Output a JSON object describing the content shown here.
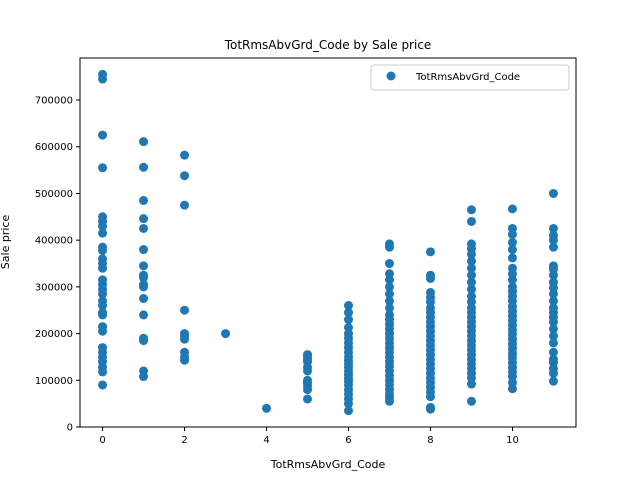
{
  "chart_data": {
    "type": "scatter",
    "title": "TotRmsAbvGrd_Code by Sale price",
    "xlabel": "TotRmsAbvGrd_Code",
    "ylabel": "Sale price",
    "xlim": [
      -0.55,
      11.55
    ],
    "ylim": [
      0,
      790000
    ],
    "xticks": [
      0,
      2,
      4,
      6,
      8,
      10
    ],
    "yticks": [
      0,
      100000,
      200000,
      300000,
      400000,
      500000,
      600000,
      700000
    ],
    "grid": false,
    "legend_position": "top-right",
    "series": [
      {
        "name": "TotRmsAbvGrd_Code",
        "color": "#1f77b4",
        "marker": "circle",
        "points": [
          [
            0,
            755000
          ],
          [
            0,
            745000
          ],
          [
            0,
            625000
          ],
          [
            0,
            555000
          ],
          [
            0,
            450000
          ],
          [
            0,
            440000
          ],
          [
            0,
            430000
          ],
          [
            0,
            415000
          ],
          [
            0,
            385000
          ],
          [
            0,
            378000
          ],
          [
            0,
            360000
          ],
          [
            0,
            350000
          ],
          [
            0,
            340000
          ],
          [
            0,
            315000
          ],
          [
            0,
            305000
          ],
          [
            0,
            295000
          ],
          [
            0,
            285000
          ],
          [
            0,
            270000
          ],
          [
            0,
            260000
          ],
          [
            0,
            245000
          ],
          [
            0,
            240000
          ],
          [
            0,
            215000
          ],
          [
            0,
            205000
          ],
          [
            0,
            170000
          ],
          [
            0,
            160000
          ],
          [
            0,
            150000
          ],
          [
            0,
            140000
          ],
          [
            0,
            128000
          ],
          [
            0,
            118000
          ],
          [
            0,
            90000
          ],
          [
            1,
            611000
          ],
          [
            1,
            556000
          ],
          [
            1,
            485000
          ],
          [
            1,
            446000
          ],
          [
            1,
            425000
          ],
          [
            1,
            380000
          ],
          [
            1,
            345000
          ],
          [
            1,
            325000
          ],
          [
            1,
            320000
          ],
          [
            1,
            305000
          ],
          [
            1,
            300000
          ],
          [
            1,
            275000
          ],
          [
            1,
            240000
          ],
          [
            1,
            190000
          ],
          [
            1,
            185000
          ],
          [
            1,
            120000
          ],
          [
            1,
            108000
          ],
          [
            2,
            582000
          ],
          [
            2,
            538000
          ],
          [
            2,
            475000
          ],
          [
            2,
            250000
          ],
          [
            2,
            200000
          ],
          [
            2,
            195000
          ],
          [
            2,
            188000
          ],
          [
            2,
            160000
          ],
          [
            2,
            150000
          ],
          [
            2,
            143000
          ],
          [
            3,
            200000
          ],
          [
            4,
            40000
          ],
          [
            5,
            155000
          ],
          [
            5,
            150000
          ],
          [
            5,
            145000
          ],
          [
            5,
            140000
          ],
          [
            5,
            128000
          ],
          [
            5,
            120000
          ],
          [
            5,
            100000
          ],
          [
            5,
            95000
          ],
          [
            5,
            88000
          ],
          [
            5,
            80000
          ],
          [
            5,
            60000
          ],
          [
            6,
            260000
          ],
          [
            6,
            245000
          ],
          [
            6,
            230000
          ],
          [
            6,
            213000
          ],
          [
            6,
            200000
          ],
          [
            6,
            190000
          ],
          [
            6,
            180000
          ],
          [
            6,
            170000
          ],
          [
            6,
            160000
          ],
          [
            6,
            150000
          ],
          [
            6,
            142000
          ],
          [
            6,
            135000
          ],
          [
            6,
            128000
          ],
          [
            6,
            120000
          ],
          [
            6,
            112000
          ],
          [
            6,
            105000
          ],
          [
            6,
            98000
          ],
          [
            6,
            90000
          ],
          [
            6,
            80000
          ],
          [
            6,
            70000
          ],
          [
            6,
            60000
          ],
          [
            6,
            50000
          ],
          [
            6,
            35000
          ],
          [
            7,
            392000
          ],
          [
            7,
            385000
          ],
          [
            7,
            350000
          ],
          [
            7,
            328000
          ],
          [
            7,
            315000
          ],
          [
            7,
            300000
          ],
          [
            7,
            285000
          ],
          [
            7,
            270000
          ],
          [
            7,
            255000
          ],
          [
            7,
            240000
          ],
          [
            7,
            230000
          ],
          [
            7,
            220000
          ],
          [
            7,
            210000
          ],
          [
            7,
            200000
          ],
          [
            7,
            190000
          ],
          [
            7,
            180000
          ],
          [
            7,
            170000
          ],
          [
            7,
            160000
          ],
          [
            7,
            150000
          ],
          [
            7,
            140000
          ],
          [
            7,
            130000
          ],
          [
            7,
            120000
          ],
          [
            7,
            110000
          ],
          [
            7,
            100000
          ],
          [
            7,
            90000
          ],
          [
            7,
            80000
          ],
          [
            7,
            70000
          ],
          [
            7,
            62000
          ],
          [
            7,
            55000
          ],
          [
            8,
            375000
          ],
          [
            8,
            325000
          ],
          [
            8,
            318000
          ],
          [
            8,
            288000
          ],
          [
            8,
            278000
          ],
          [
            8,
            268000
          ],
          [
            8,
            255000
          ],
          [
            8,
            245000
          ],
          [
            8,
            235000
          ],
          [
            8,
            225000
          ],
          [
            8,
            215000
          ],
          [
            8,
            205000
          ],
          [
            8,
            195000
          ],
          [
            8,
            185000
          ],
          [
            8,
            175000
          ],
          [
            8,
            165000
          ],
          [
            8,
            155000
          ],
          [
            8,
            145000
          ],
          [
            8,
            135000
          ],
          [
            8,
            125000
          ],
          [
            8,
            115000
          ],
          [
            8,
            105000
          ],
          [
            8,
            95000
          ],
          [
            8,
            85000
          ],
          [
            8,
            75000
          ],
          [
            8,
            65000
          ],
          [
            8,
            42000
          ],
          [
            8,
            38000
          ],
          [
            9,
            465000
          ],
          [
            9,
            440000
          ],
          [
            9,
            392000
          ],
          [
            9,
            382000
          ],
          [
            9,
            370000
          ],
          [
            9,
            355000
          ],
          [
            9,
            340000
          ],
          [
            9,
            325000
          ],
          [
            9,
            310000
          ],
          [
            9,
            295000
          ],
          [
            9,
            280000
          ],
          [
            9,
            268000
          ],
          [
            9,
            255000
          ],
          [
            9,
            245000
          ],
          [
            9,
            235000
          ],
          [
            9,
            225000
          ],
          [
            9,
            215000
          ],
          [
            9,
            205000
          ],
          [
            9,
            195000
          ],
          [
            9,
            185000
          ],
          [
            9,
            175000
          ],
          [
            9,
            165000
          ],
          [
            9,
            155000
          ],
          [
            9,
            145000
          ],
          [
            9,
            135000
          ],
          [
            9,
            125000
          ],
          [
            9,
            115000
          ],
          [
            9,
            105000
          ],
          [
            9,
            92000
          ],
          [
            9,
            55000
          ],
          [
            10,
            467000
          ],
          [
            10,
            425000
          ],
          [
            10,
            412000
          ],
          [
            10,
            395000
          ],
          [
            10,
            380000
          ],
          [
            10,
            362000
          ],
          [
            10,
            340000
          ],
          [
            10,
            328000
          ],
          [
            10,
            315000
          ],
          [
            10,
            300000
          ],
          [
            10,
            290000
          ],
          [
            10,
            280000
          ],
          [
            10,
            270000
          ],
          [
            10,
            258000
          ],
          [
            10,
            248000
          ],
          [
            10,
            238000
          ],
          [
            10,
            228000
          ],
          [
            10,
            218000
          ],
          [
            10,
            208000
          ],
          [
            10,
            198000
          ],
          [
            10,
            188000
          ],
          [
            10,
            178000
          ],
          [
            10,
            168000
          ],
          [
            10,
            158000
          ],
          [
            10,
            148000
          ],
          [
            10,
            138000
          ],
          [
            10,
            128000
          ],
          [
            10,
            118000
          ],
          [
            10,
            108000
          ],
          [
            10,
            95000
          ],
          [
            10,
            82000
          ],
          [
            11,
            500000
          ],
          [
            11,
            425000
          ],
          [
            11,
            410000
          ],
          [
            11,
            400000
          ],
          [
            11,
            385000
          ],
          [
            11,
            345000
          ],
          [
            11,
            338000
          ],
          [
            11,
            325000
          ],
          [
            11,
            310000
          ],
          [
            11,
            298000
          ],
          [
            11,
            285000
          ],
          [
            11,
            270000
          ],
          [
            11,
            255000
          ],
          [
            11,
            245000
          ],
          [
            11,
            235000
          ],
          [
            11,
            225000
          ],
          [
            11,
            210000
          ],
          [
            11,
            195000
          ],
          [
            11,
            180000
          ],
          [
            11,
            160000
          ],
          [
            11,
            145000
          ],
          [
            11,
            138000
          ],
          [
            11,
            125000
          ],
          [
            11,
            115000
          ],
          [
            11,
            98000
          ]
        ]
      }
    ]
  }
}
